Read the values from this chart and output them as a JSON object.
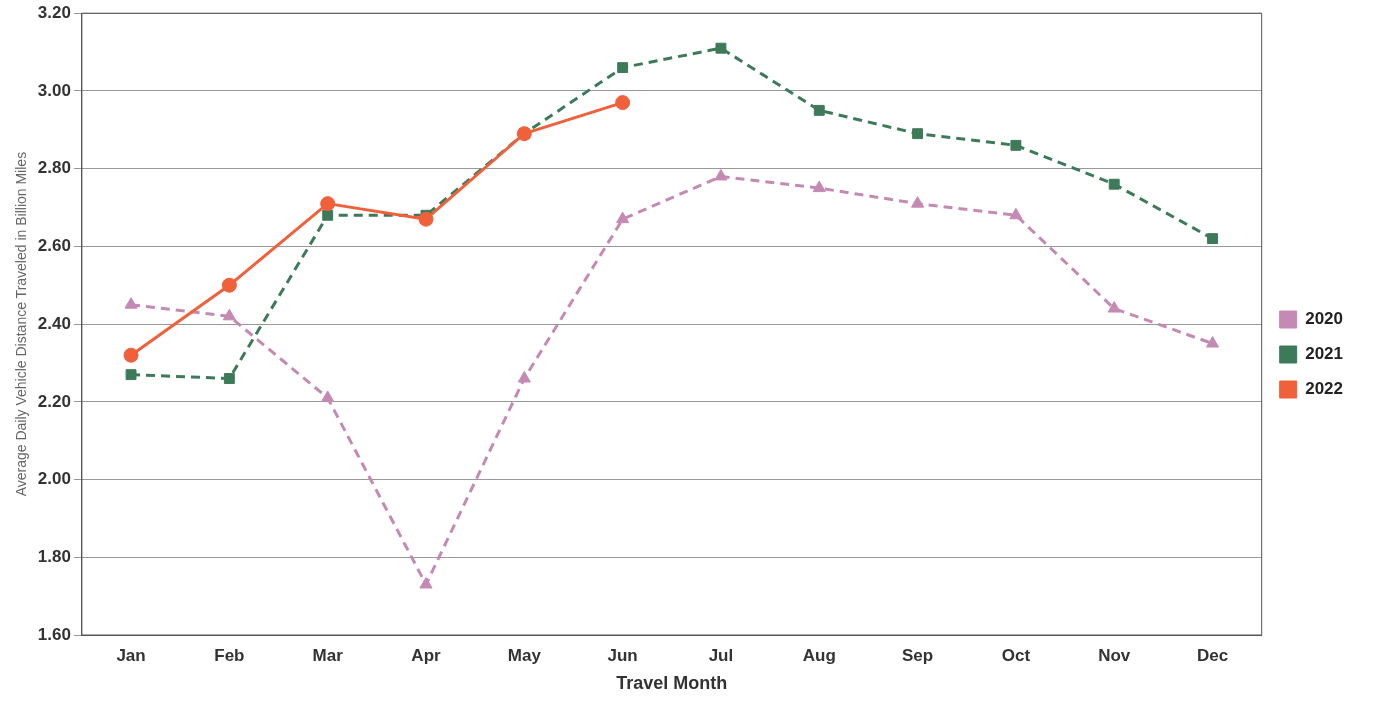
{
  "chart_data": {
    "type": "line",
    "xlabel": "Travel Month",
    "ylabel": "Average Daily Vehicle Distance Traveled in Billion Miles",
    "categories": [
      "Jan",
      "Feb",
      "Mar",
      "Apr",
      "May",
      "Jun",
      "Jul",
      "Aug",
      "Sep",
      "Oct",
      "Nov",
      "Dec"
    ],
    "series": [
      {
        "name": "2020",
        "color": "#c48ab4",
        "marker": "triangle",
        "line_style": "dashed",
        "values": [
          2.45,
          2.42,
          2.21,
          1.73,
          2.26,
          2.67,
          2.78,
          2.75,
          2.71,
          2.68,
          2.44,
          2.35
        ]
      },
      {
        "name": "2021",
        "color": "#3d7a5a",
        "marker": "square",
        "line_style": "dashed",
        "values": [
          2.27,
          2.26,
          2.68,
          2.68,
          2.89,
          3.06,
          3.11,
          2.95,
          2.89,
          2.86,
          2.76,
          2.62
        ]
      },
      {
        "name": "2022",
        "color": "#f0603a",
        "marker": "circle",
        "line_style": "solid",
        "values": [
          2.32,
          2.5,
          2.71,
          2.67,
          2.89,
          2.97,
          null,
          null,
          null,
          null,
          null,
          null
        ]
      }
    ],
    "ylim": [
      1.6,
      3.2
    ],
    "yticks": [
      {
        "value": 1.6,
        "label": "1.60"
      },
      {
        "value": 1.8,
        "label": "1.80"
      },
      {
        "value": 2.0,
        "label": "2.00"
      },
      {
        "value": 2.2,
        "label": "2.20"
      },
      {
        "value": 2.4,
        "label": "2.40"
      },
      {
        "value": 2.6,
        "label": "2.60"
      },
      {
        "value": 2.8,
        "label": "2.80"
      },
      {
        "value": 3.0,
        "label": "3.00"
      },
      {
        "value": 3.2,
        "label": "3.20"
      }
    ],
    "grid": "y",
    "legend": "right"
  }
}
